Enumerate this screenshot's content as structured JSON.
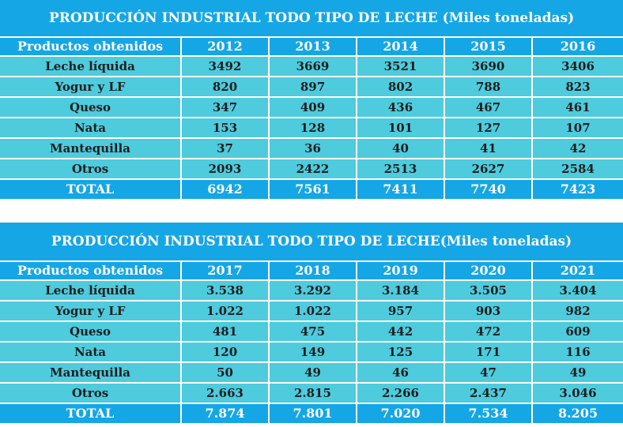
{
  "table1": {
    "title": "PRODUCCIÓN INDUSTRIAL TODO TIPO DE LECHE (Miles toneladas)",
    "header": [
      "Productos obtenidos",
      "2012",
      "2013",
      "2014",
      "2015",
      "2016"
    ],
    "rows": [
      [
        "Leche líquida",
        "3492",
        "3669",
        "3521",
        "3690",
        "3406"
      ],
      [
        "Yogur y LF",
        "820",
        "897",
        "802",
        "788",
        "823"
      ],
      [
        "Queso",
        "347",
        "409",
        "436",
        "467",
        "461"
      ],
      [
        "Nata",
        "153",
        "128",
        "101",
        "127",
        "107"
      ],
      [
        "Mantequilla",
        "37",
        "36",
        "40",
        "41",
        "42"
      ],
      [
        "Otros",
        "2093",
        "2422",
        "2513",
        "2627",
        "2584"
      ]
    ],
    "total": [
      "TOTAL",
      "6942",
      "7561",
      "7411",
      "7740",
      "7423"
    ]
  },
  "table2": {
    "title": "PRODUCCIÓN INDUSTRIAL TODO TIPO DE LECHE(Miles toneladas)",
    "header": [
      "Productos obtenidos",
      "2017",
      "2018",
      "2019",
      "2020",
      "2021"
    ],
    "rows": [
      [
        "Leche líquida",
        "3.538",
        "3.292",
        "3.184",
        "3.505",
        "3.404"
      ],
      [
        "Yogur y LF",
        "1.022",
        "1.022",
        "957",
        "903",
        "982"
      ],
      [
        "Queso",
        "481",
        "475",
        "442",
        "472",
        "609"
      ],
      [
        "Nata",
        "120",
        "149",
        "125",
        "171",
        "116"
      ],
      [
        "Mantequilla",
        "50",
        "49",
        "46",
        "47",
        "49"
      ],
      [
        "Otros",
        "2.663",
        "2.815",
        "2.266",
        "2.437",
        "3.046"
      ]
    ],
    "total": [
      "TOTAL",
      "7.874",
      "7.801",
      "7.020",
      "7.534",
      "8.205"
    ]
  },
  "colors": {
    "header_blue": "#15a6e6",
    "row_cyan": "#4ecbdd",
    "row_text": "#1d1d1d",
    "header_text": "#ffffff"
  }
}
